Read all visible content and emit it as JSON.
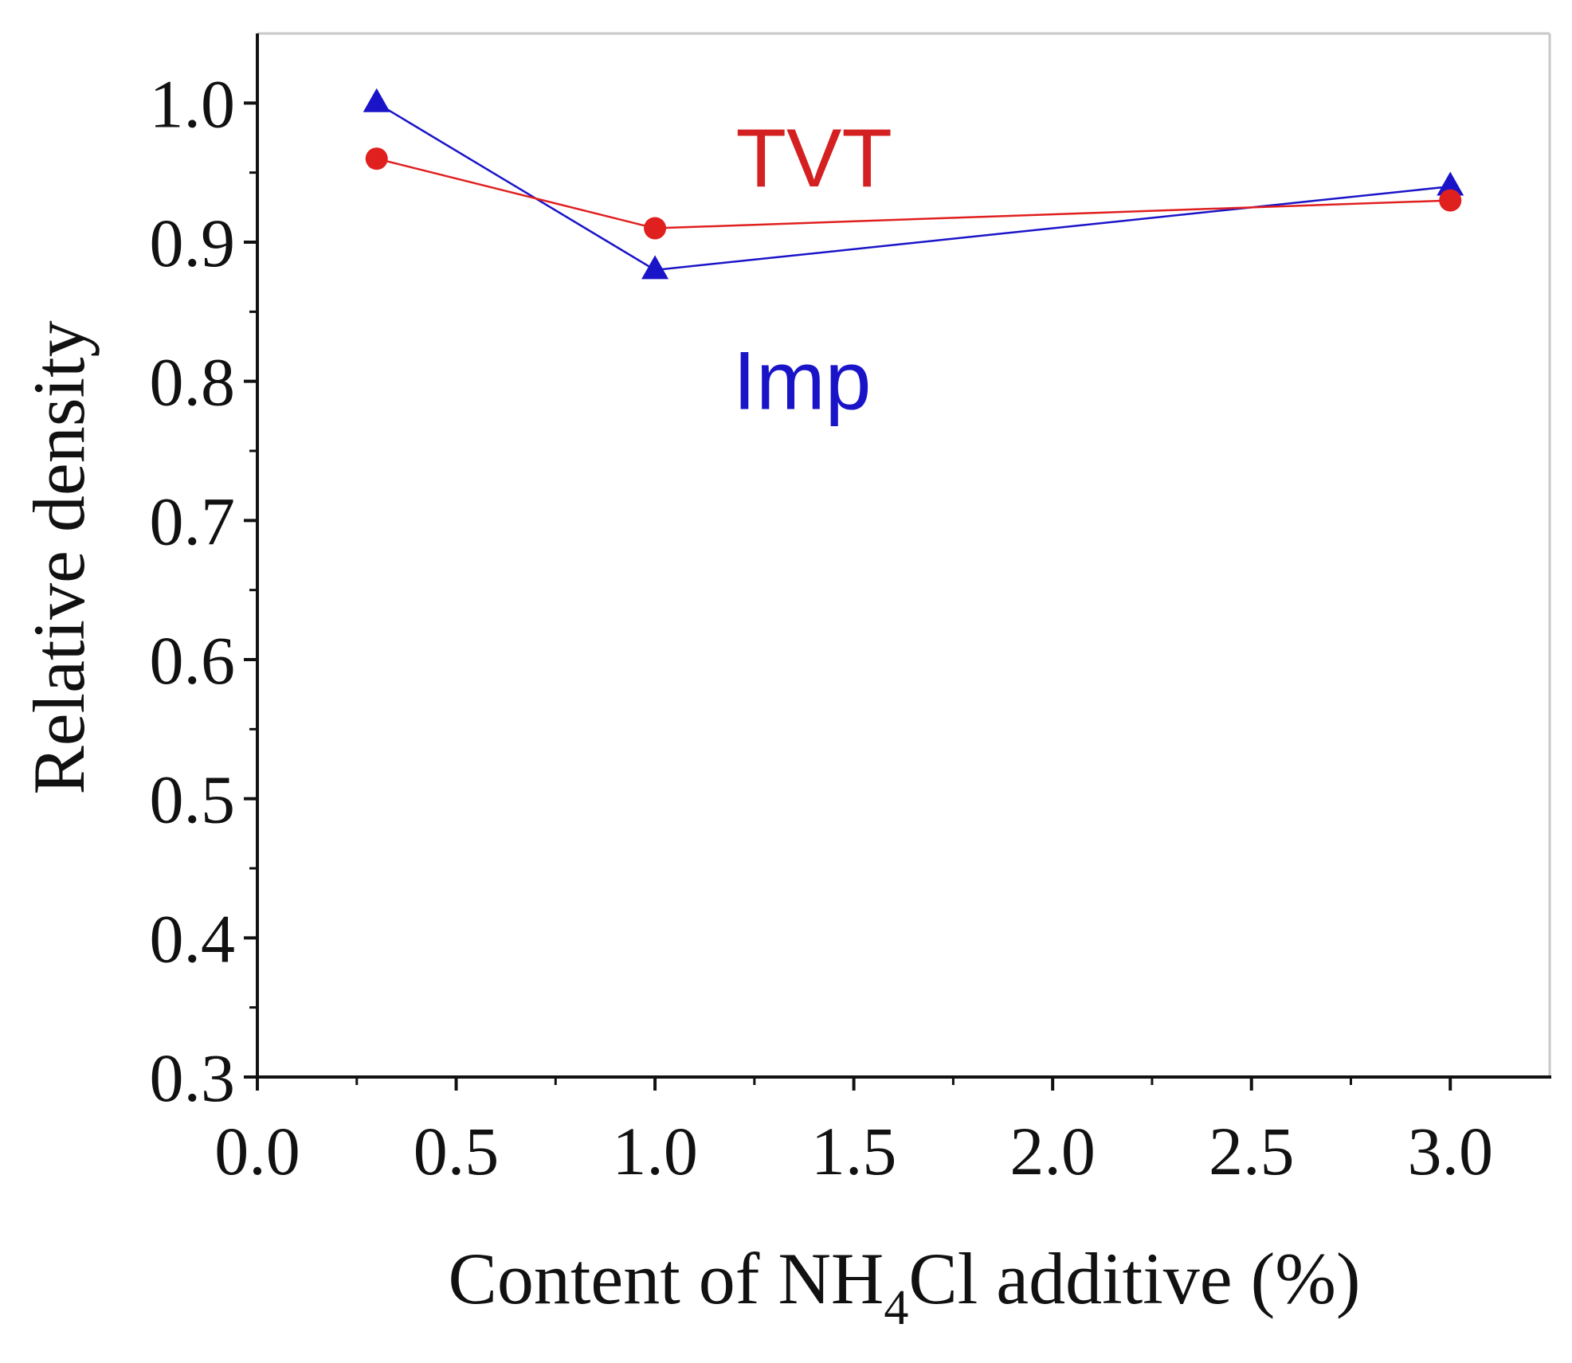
{
  "chart_data": {
    "type": "line",
    "title": "",
    "xlabel": {
      "prefix": "Content of NH",
      "subscript": "4",
      "suffix": "Cl additive (%)"
    },
    "ylabel": "Relative density",
    "xlim": [
      0.0,
      3.25
    ],
    "ylim": [
      0.3,
      1.05
    ],
    "x_ticks": [
      0.0,
      0.5,
      1.0,
      1.5,
      2.0,
      2.5,
      3.0
    ],
    "x_tick_labels": [
      "0.0",
      "0.5",
      "1.0",
      "1.5",
      "2.0",
      "2.5",
      "3.0"
    ],
    "y_ticks": [
      0.3,
      0.4,
      0.5,
      0.6,
      0.7,
      0.8,
      0.9,
      1.0
    ],
    "y_tick_labels": [
      "0.3",
      "0.4",
      "0.5",
      "0.6",
      "0.7",
      "0.8",
      "0.9",
      "1.0"
    ],
    "grid": false,
    "series": [
      {
        "name": "Imp",
        "color": "#1a14c8",
        "marker": "triangle",
        "x": [
          0.3,
          1.0,
          3.0
        ],
        "values": [
          1.0,
          0.88,
          0.94
        ]
      },
      {
        "name": "TVT",
        "color": "#e01f1f",
        "marker": "circle",
        "x": [
          0.3,
          1.0,
          3.0
        ],
        "values": [
          0.96,
          0.91,
          0.93
        ]
      }
    ],
    "annotations": [
      {
        "text": "TVT",
        "color": "#d42020",
        "x": 1.4,
        "y": 0.94
      },
      {
        "text": "Imp",
        "color": "#1a14c8",
        "x": 1.37,
        "y": 0.78
      }
    ]
  }
}
